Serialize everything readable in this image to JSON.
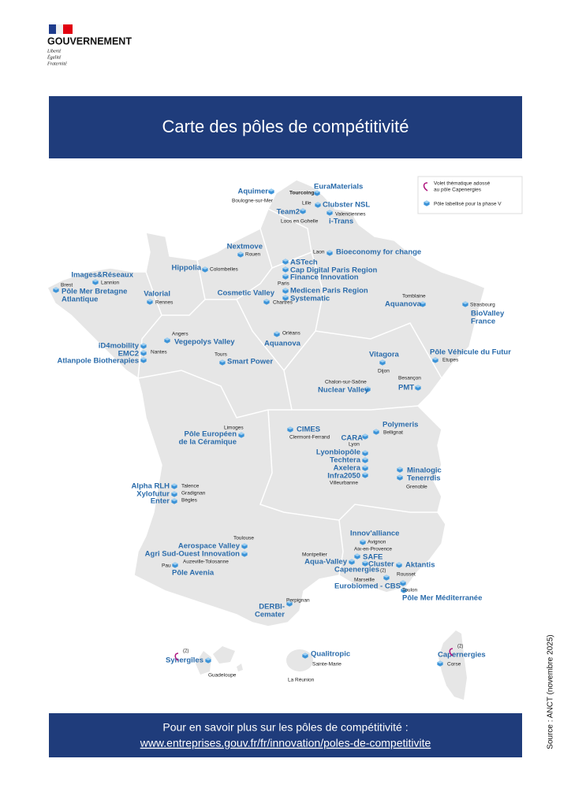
{
  "header": {
    "logo": "GOUVERNEMENT",
    "motto": [
      "Liberté",
      "Égalité",
      "Fraternité"
    ]
  },
  "title": "Carte des pôles de compétitivité",
  "legend": {
    "thematic": [
      "Volet thématique adossé",
      "au pôle Capenergies"
    ],
    "labelled": "Pôle labellisé pour la phase V"
  },
  "poles": [
    [
      "Aquimer"
    ],
    [
      "EuraMaterials"
    ],
    [
      "Clubster NSL"
    ],
    [
      "Team2"
    ],
    [
      "i-Trans"
    ],
    [
      "Nextmove"
    ],
    [
      "Hippolia"
    ],
    [
      "Bioeconomy for change"
    ],
    [
      "ASTech"
    ],
    [
      "Cap Digital Paris Region"
    ],
    [
      "Finance Innovation"
    ],
    [
      "Medicen Paris Region"
    ],
    [
      "Systematic"
    ],
    [
      "Images&Réseaux"
    ],
    [
      "Pôle Mer Bretagne",
      "Atlantique"
    ],
    [
      "Valorial"
    ],
    [
      "Cosmetic Valley"
    ],
    [
      "Aquanova"
    ],
    [
      "BioValley",
      "France"
    ],
    [
      "Vegepolys Valley"
    ],
    [
      "Aquanova"
    ],
    [
      "iD4mobility"
    ],
    [
      "EMC2"
    ],
    [
      "Atlanpole Biotherapies"
    ],
    [
      "Smart Power"
    ],
    [
      "Vitagora"
    ],
    [
      "Pôle Véhicule du Futur"
    ],
    [
      "Nuclear Valley"
    ],
    [
      "PMT"
    ],
    [
      "Polymeris"
    ],
    [
      "CIMES"
    ],
    [
      "Pôle Européen",
      "de la Céramique"
    ],
    [
      "CARA"
    ],
    [
      "Lyonbiopôle"
    ],
    [
      "Techtera"
    ],
    [
      "Axelera"
    ],
    [
      "Infra2050"
    ],
    [
      "Minalogic"
    ],
    [
      "Tenerrdis"
    ],
    [
      "Alpha RLH"
    ],
    [
      "Xylofutur"
    ],
    [
      "Enter"
    ],
    [
      "Innov'alliance"
    ],
    [
      "Aerospace Valley"
    ],
    [
      "Agri Sud-Ouest Innovation"
    ],
    [
      "SAFE"
    ],
    [
      "Aqua-Valley"
    ],
    [
      "Cluster"
    ],
    [
      "Aktantis"
    ],
    [
      "Capenergies"
    ],
    [
      "Pôle Avenia"
    ],
    [
      "Eurobiomed - CBS"
    ],
    [
      "Pôle Mer Méditerranée"
    ],
    [
      "DERBI-",
      "Cemater"
    ],
    [
      "Synergîles"
    ],
    [
      "Qualitropic"
    ],
    [
      "Capernergies"
    ]
  ],
  "cities": [
    "Boulogne-sur-Mer",
    "Tourcoing",
    "Lille",
    "Valenciennes",
    "Loos en Gohelle",
    "Laon",
    "Rouen",
    "Colombelles",
    "Paris",
    "Chartres",
    "Brest",
    "Lannion",
    "Rennes",
    "Tomblaine",
    "Strasbourg",
    "Angers",
    "Orléans",
    "Nantes",
    "Tours",
    "Dijon",
    "Etupes",
    "Besançon",
    "Chalon-sur-Saône",
    "Limoges",
    "Bellignat",
    "Clermont-Ferrand",
    "Lyon",
    "Villeurbanne",
    "Grenoble",
    "Talence",
    "Gradignan",
    "Bègles",
    "Toulouse",
    "Avignon",
    "Aix-en-Provence",
    "Montpellier",
    "Pau",
    "Auzeville-Tolosanne",
    "Marseille",
    "Rousset",
    "Toulon",
    "Perpignan",
    "Guadeloupe",
    "Sainte-Marie",
    "La Réunion",
    "Corse"
  ],
  "notes": [
    "(2)",
    "(2)",
    "(2)"
  ],
  "footer": {
    "text": "Pour en savoir plus sur les pôles de compétitivité :",
    "link": "www.entreprises.gouv.fr/fr/innovation/poles-de-competitivite"
  },
  "source": "Source : ANCT (novembre 2025)"
}
